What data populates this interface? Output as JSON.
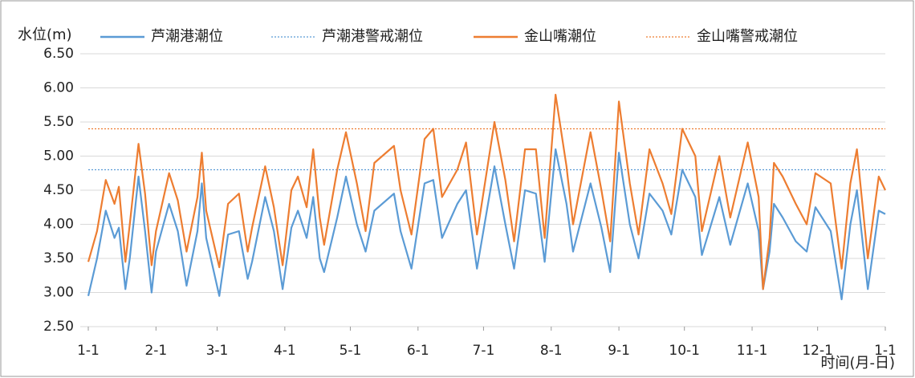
{
  "chart_data": {
    "type": "line",
    "y_label": "水位(m)",
    "x_label": "时间(月-日)",
    "x": [
      0,
      4,
      8,
      12,
      14,
      17,
      19,
      23,
      26,
      29,
      31,
      37,
      41,
      45,
      50,
      52,
      54,
      60,
      64,
      69,
      73,
      75,
      81,
      85,
      89,
      93,
      96,
      100,
      103,
      106,
      108,
      114,
      118,
      123,
      127,
      131,
      140,
      143,
      148,
      154,
      158,
      162,
      169,
      173,
      178,
      186,
      191,
      195,
      200,
      205,
      209,
      214,
      219,
      222,
      230,
      235,
      239,
      243,
      248,
      252,
      257,
      263,
      267,
      272,
      278,
      281,
      289,
      294,
      302,
      307,
      309,
      312,
      314,
      318,
      324,
      329,
      333,
      340,
      345,
      349,
      352,
      357,
      362,
      365
    ],
    "series": [
      {
        "name": "芦潮港潮位",
        "color": "#5b9bd5",
        "values": [
          2.95,
          3.5,
          4.2,
          3.8,
          3.95,
          3.05,
          3.5,
          4.7,
          3.9,
          3.0,
          3.6,
          4.3,
          3.9,
          3.1,
          3.9,
          4.6,
          3.8,
          2.95,
          3.85,
          3.9,
          3.2,
          3.45,
          4.4,
          3.9,
          3.05,
          3.95,
          4.2,
          3.8,
          4.4,
          3.5,
          3.3,
          4.1,
          4.7,
          4.0,
          3.6,
          4.2,
          4.45,
          3.9,
          3.35,
          4.6,
          4.65,
          3.8,
          4.3,
          4.5,
          3.35,
          4.85,
          4.0,
          3.35,
          4.5,
          4.45,
          3.45,
          5.1,
          4.3,
          3.6,
          4.6,
          3.95,
          3.3,
          5.05,
          4.0,
          3.5,
          4.45,
          4.2,
          3.85,
          4.8,
          4.4,
          3.55,
          4.4,
          3.7,
          4.6,
          3.9,
          3.05,
          3.6,
          4.3,
          4.1,
          3.75,
          3.6,
          4.25,
          3.9,
          2.9,
          4.0,
          4.5,
          3.05,
          4.2,
          4.15
        ]
      },
      {
        "name": "芦潮港警戒潮位",
        "color": "#5b9bd5",
        "value": 4.8,
        "dash": "dotted"
      },
      {
        "name": "金山嘴潮位",
        "color": "#ed7d31",
        "values": [
          3.45,
          3.9,
          4.65,
          4.3,
          4.55,
          3.45,
          4.0,
          5.18,
          4.45,
          3.4,
          3.9,
          4.75,
          4.35,
          3.6,
          4.4,
          5.05,
          4.2,
          3.37,
          4.3,
          4.45,
          3.6,
          3.95,
          4.85,
          4.25,
          3.4,
          4.5,
          4.7,
          4.25,
          5.1,
          4.1,
          3.7,
          4.8,
          5.35,
          4.6,
          3.9,
          4.9,
          5.15,
          4.5,
          3.85,
          5.25,
          5.4,
          4.4,
          4.8,
          5.2,
          3.85,
          5.5,
          4.65,
          3.75,
          5.1,
          5.1,
          3.8,
          5.9,
          4.85,
          4.0,
          5.35,
          4.5,
          3.75,
          5.8,
          4.6,
          3.85,
          5.1,
          4.6,
          4.15,
          5.4,
          5.0,
          3.9,
          5.0,
          4.1,
          5.2,
          4.4,
          3.05,
          3.8,
          4.9,
          4.7,
          4.3,
          4.0,
          4.75,
          4.6,
          3.35,
          4.6,
          5.1,
          3.5,
          4.7,
          4.5
        ]
      },
      {
        "name": "金山嘴警戒潮位",
        "color": "#ed7d31",
        "value": 5.4,
        "dash": "dotted"
      }
    ],
    "xlim": [
      0,
      365
    ],
    "xticks": [
      {
        "value": 0,
        "label": "1-1"
      },
      {
        "value": 31,
        "label": "2-1"
      },
      {
        "value": 59,
        "label": "3-1"
      },
      {
        "value": 90,
        "label": "4-1"
      },
      {
        "value": 120,
        "label": "5-1"
      },
      {
        "value": 151,
        "label": "6-1"
      },
      {
        "value": 181,
        "label": "7-1"
      },
      {
        "value": 212,
        "label": "8-1"
      },
      {
        "value": 243,
        "label": "9-1"
      },
      {
        "value": 273,
        "label": "10-1"
      },
      {
        "value": 304,
        "label": "11-1"
      },
      {
        "value": 334,
        "label": "12-1"
      },
      {
        "value": 365,
        "label": "1-1"
      }
    ],
    "ylim": [
      2.5,
      6.5
    ],
    "yticks": [
      {
        "value": 2.5,
        "label": "2.50"
      },
      {
        "value": 3,
        "label": "3.00"
      },
      {
        "value": 3.5,
        "label": "3.50"
      },
      {
        "value": 4,
        "label": "4.00"
      },
      {
        "value": 4.5,
        "label": "4.50"
      },
      {
        "value": 5,
        "label": "5.00"
      },
      {
        "value": 5.5,
        "label": "5.50"
      },
      {
        "value": 6,
        "label": "6.00"
      },
      {
        "value": 6.5,
        "label": "6.50"
      }
    ],
    "grid": true,
    "legend": "top"
  }
}
